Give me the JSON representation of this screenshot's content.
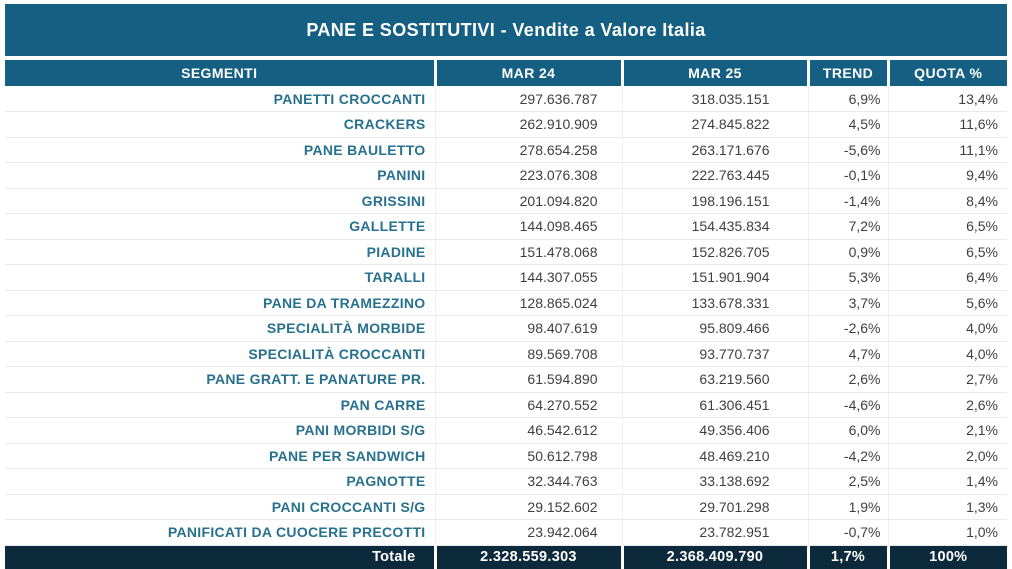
{
  "colors": {
    "header_bg": "#156082",
    "total_bg": "#0d2a3d",
    "segment_text": "#27718f",
    "number_text": "#3f3f3f",
    "grid_line": "#e9e9e9"
  },
  "chart_data": {
    "type": "table",
    "title": "PANE E SOSTITUTIVI - Vendite a Valore Italia",
    "columns": [
      "SEGMENTI",
      "MAR 24",
      "MAR 25",
      "TREND",
      "QUOTA %"
    ],
    "rows": [
      [
        "PANETTI CROCCANTI",
        "297.636.787",
        "318.035.151",
        "6,9%",
        "13,4%"
      ],
      [
        "CRACKERS",
        "262.910.909",
        "274.845.822",
        "4,5%",
        "11,6%"
      ],
      [
        "PANE BAULETTO",
        "278.654.258",
        "263.171.676",
        "-5,6%",
        "11,1%"
      ],
      [
        "PANINI",
        "223.076.308",
        "222.763.445",
        "-0,1%",
        "9,4%"
      ],
      [
        "GRISSINI",
        "201.094.820",
        "198.196.151",
        "-1,4%",
        "8,4%"
      ],
      [
        "GALLETTE",
        "144.098.465",
        "154.435.834",
        "7,2%",
        "6,5%"
      ],
      [
        "PIADINE",
        "151.478.068",
        "152.826.705",
        "0,9%",
        "6,5%"
      ],
      [
        "TARALLI",
        "144.307.055",
        "151.901.904",
        "5,3%",
        "6,4%"
      ],
      [
        "PANE DA TRAMEZZINO",
        "128.865.024",
        "133.678.331",
        "3,7%",
        "5,6%"
      ],
      [
        "SPECIALITÀ MORBIDE",
        "98.407.619",
        "95.809.466",
        "-2,6%",
        "4,0%"
      ],
      [
        "SPECIALITÀ CROCCANTI",
        "89.569.708",
        "93.770.737",
        "4,7%",
        "4,0%"
      ],
      [
        "PANE GRATT. E PANATURE PR.",
        "61.594.890",
        "63.219.560",
        "2,6%",
        "2,7%"
      ],
      [
        "PAN CARRE",
        "64.270.552",
        "61.306.451",
        "-4,6%",
        "2,6%"
      ],
      [
        "PANI MORBIDI S/G",
        "46.542.612",
        "49.356.406",
        "6,0%",
        "2,1%"
      ],
      [
        "PANE PER SANDWICH",
        "50.612.798",
        "48.469.210",
        "-4,2%",
        "2,0%"
      ],
      [
        "PAGNOTTE",
        "32.344.763",
        "33.138.692",
        "2,5%",
        "1,4%"
      ],
      [
        "PANI CROCCANTI S/G",
        "29.152.602",
        "29.701.298",
        "1,9%",
        "1,3%"
      ],
      [
        "PANIFICATI DA CUOCERE PRECOTTI",
        "23.942.064",
        "23.782.951",
        "-0,7%",
        "1,0%"
      ]
    ],
    "total_row": [
      "Totale",
      "2.328.559.303",
      "2.368.409.790",
      "1,7%",
      "100%"
    ]
  }
}
